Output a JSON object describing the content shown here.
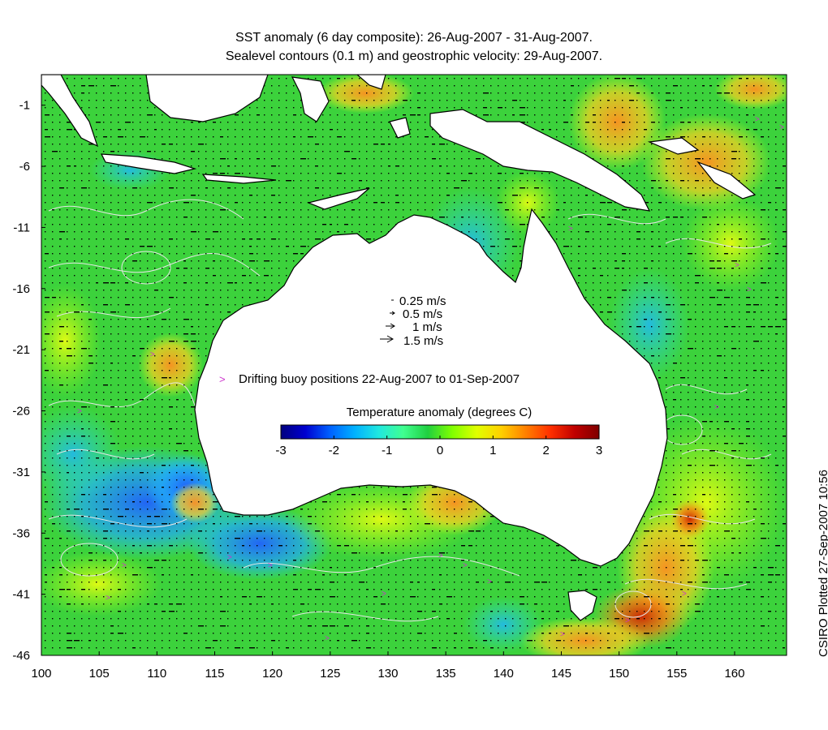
{
  "title": {
    "line1": "SST anomaly (6 day composite): 26-Aug-2007 - 31-Aug-2007.",
    "line2": "Sealevel contours (0.1 m) and geostrophic velocity: 29-Aug-2007."
  },
  "axes": {
    "x_ticks": [
      "100",
      "105",
      "110",
      "115",
      "120",
      "125",
      "130",
      "135",
      "140",
      "145",
      "150",
      "155",
      "160"
    ],
    "y_ticks": [
      "-1",
      "-6",
      "-11",
      "-16",
      "-21",
      "-26",
      "-31",
      "-36",
      "-41",
      "-46"
    ],
    "x_range": [
      100,
      164.5
    ],
    "y_range": [
      -46,
      1.5
    ]
  },
  "velocity_legend": {
    "items": [
      "0.25 m/s",
      "0.5 m/s",
      "1 m/s",
      "1.5 m/s"
    ]
  },
  "buoy_legend": {
    "marker": ">",
    "label": "Drifting buoy positions 22-Aug-2007 to 01-Sep-2007",
    "color": "#cc33cc"
  },
  "colorbar": {
    "title": "Temperature anomaly (degrees C)",
    "ticks": [
      "-3",
      "-2",
      "-1",
      "0",
      "1",
      "2",
      "3"
    ],
    "min": -3,
    "max": 3,
    "colors": [
      "#00007f",
      "#0000d0",
      "#0060ff",
      "#00b0ff",
      "#20e8e0",
      "#40ff90",
      "#20d040",
      "#80ff00",
      "#e0ff00",
      "#ffd000",
      "#ff8000",
      "#ff3000",
      "#c00000",
      "#7f0000"
    ]
  },
  "credit": "CSIRO Plotted 27-Sep-2007 10:56",
  "colors": {
    "background_sst": "#3cd23c",
    "land": "#ffffff",
    "coast": "#000000",
    "contour": "#e8e8e8",
    "arrow": "#000000"
  }
}
